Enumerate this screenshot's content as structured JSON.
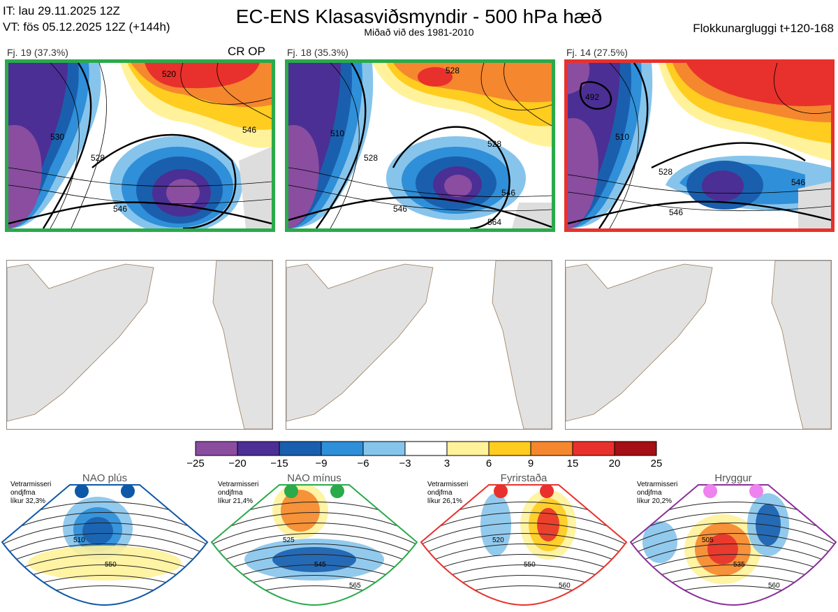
{
  "header": {
    "it": "IT: lau 29.11.2025 12Z",
    "vt": "VT: fös 05.12.2025 12Z  (+144h)",
    "title": "EC-ENS Klasasviðsmyndir - 500 hPa hæð",
    "subtitle": "Miðað við des 1981-2010",
    "window": "Flokkunargluggi t+120-168"
  },
  "clusters": [
    {
      "label": "Fj. 19 (37.3%)",
      "tag": "CR OP",
      "border_color": "#2aaa4a",
      "contours": [
        "520",
        "530",
        "528",
        "546",
        "546"
      ]
    },
    {
      "label": "Fj. 18 (35.3%)",
      "tag": "",
      "border_color": "#2aaa4a",
      "contours": [
        "528",
        "510",
        "528",
        "528",
        "546",
        "546",
        "564"
      ]
    },
    {
      "label": "Fj. 14 (27.5%)",
      "tag": "",
      "border_color": "#e8312c",
      "contours": [
        "492",
        "510",
        "528",
        "546",
        "546"
      ]
    }
  ],
  "colorbar": {
    "ticks": [
      "−25",
      "−20",
      "−15",
      "−9",
      "−6",
      "−3",
      "3",
      "6",
      "9",
      "15",
      "20",
      "25"
    ],
    "colors": [
      "#8a4da0",
      "#4b2f94",
      "#1a5fae",
      "#2f8fd8",
      "#86c4ec",
      "#ffffff",
      "#fff29a",
      "#ffcc20",
      "#f5872e",
      "#e8312c",
      "#a50f15"
    ]
  },
  "regimes": [
    {
      "name": "NAO plús",
      "note": [
        "Vetrarmisseri",
        "ondjfma",
        "líkur 32,3%"
      ],
      "dot_color": "#0e58a8",
      "border_color": "#0e58a8",
      "contours": [
        "510",
        "550"
      ]
    },
    {
      "name": "NAO mínus",
      "note": [
        "Vetrarmisseri",
        "ondjfma",
        "líkur 21,4%"
      ],
      "dot_color": "#2aaa4a",
      "border_color": "#2aaa4a",
      "contours": [
        "525",
        "545",
        "565"
      ]
    },
    {
      "name": "Fyrirstaða",
      "note": [
        "Vetrarmisseri",
        "ondjfma",
        "líkur 26,1%"
      ],
      "dot_color": "#e8312c",
      "border_color": "#e8312c",
      "contours": [
        "520",
        "550",
        "560"
      ]
    },
    {
      "name": "Hryggur",
      "note": [
        "Vetrarmisseri",
        "ondjfma",
        "líkur 20,2%"
      ],
      "dot_color": "#ee82ee",
      "border_color": "#8a2f9a",
      "contours": [
        "505",
        "535",
        "560"
      ]
    }
  ]
}
